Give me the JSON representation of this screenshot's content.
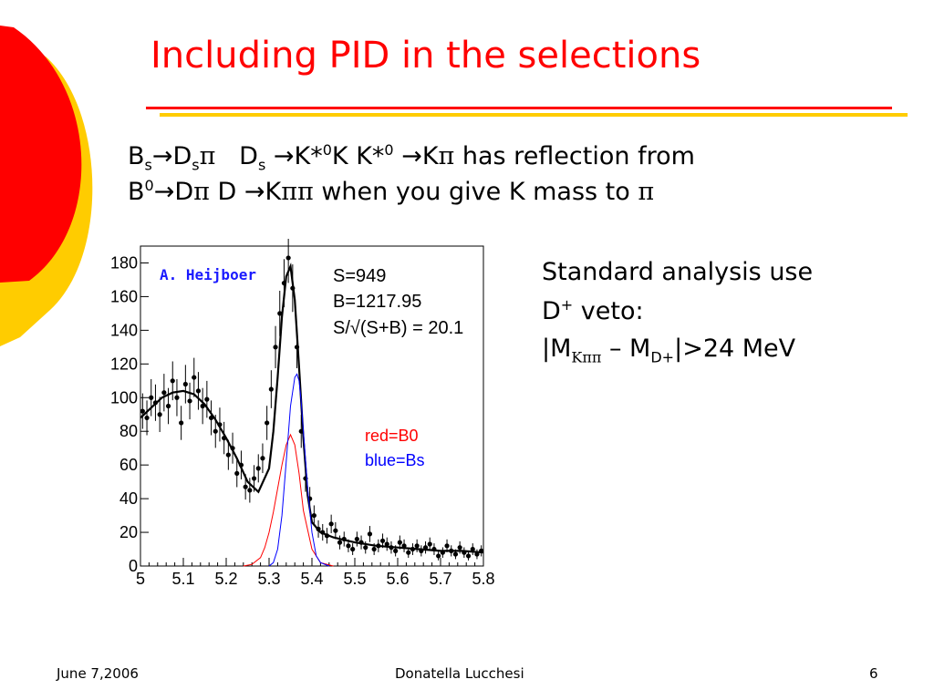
{
  "colors": {
    "accent_red": "#ff0000",
    "accent_gold": "#ffcc00"
  },
  "title": "Including PID in the selections",
  "bullets": {
    "line1": {
      "bs": "B",
      "bs_sub": "s",
      "arrow1": "→",
      "ds": "D",
      "ds_sub": "s",
      "pi1": "π",
      "ds2": "D",
      "ds2_sub": "s",
      "arrow2": "→",
      "kstar": "K*",
      "kstar_sup": "0",
      "k_kstar": "K K*",
      "kstar2_sup": "0",
      "arrow3": "→",
      "kpi_k": "K",
      "pi2": "π",
      "tail": "has reflection from"
    },
    "line2": {
      "b0": "B",
      "b0_sup": "0",
      "arrow1": "→",
      "dpi_d": "D",
      "pi1": "π",
      "d": "D",
      "arrow2": "→",
      "k": "K",
      "pipi": "ππ",
      "tail": "when you give K mass to",
      "pi_end": "π"
    }
  },
  "side_text": {
    "line1": "Standard analysis use",
    "line2_d": "D",
    "line2_sup": "+",
    "line2_tail": " veto:",
    "line3_pre": "|M",
    "line3_sub": "Kππ",
    "line3_mid": " – M",
    "line3_sub2": "D+",
    "line3_tail": "|>24 MeV"
  },
  "chart_data": {
    "type": "scatter",
    "title": "",
    "xlabel": "",
    "ylabel": "",
    "xlim": [
      5.0,
      5.8
    ],
    "ylim": [
      0,
      190
    ],
    "x_ticks": [
      "5",
      "5.1",
      "5.2",
      "5.3",
      "5.4",
      "5.5",
      "5.6",
      "5.7",
      "5.8"
    ],
    "y_ticks": [
      "0",
      "20",
      "40",
      "60",
      "80",
      "100",
      "120",
      "140",
      "160",
      "180"
    ],
    "annotations": {
      "author": "A. Heijboer",
      "s": "S=949",
      "b": "B=1217.95",
      "signif": "S/√(S+B) = 20.1",
      "red_label": "red=B0",
      "blue_label": "blue=Bs"
    },
    "series": [
      {
        "role": "data",
        "color": "#000000",
        "x": [
          5.005,
          5.015,
          5.025,
          5.035,
          5.045,
          5.055,
          5.065,
          5.075,
          5.085,
          5.095,
          5.105,
          5.115,
          5.125,
          5.135,
          5.145,
          5.155,
          5.165,
          5.175,
          5.185,
          5.195,
          5.205,
          5.215,
          5.225,
          5.235,
          5.245,
          5.255,
          5.265,
          5.275,
          5.285,
          5.295,
          5.305,
          5.315,
          5.325,
          5.335,
          5.345,
          5.355,
          5.365,
          5.375,
          5.385,
          5.395,
          5.405,
          5.415,
          5.425,
          5.435,
          5.445,
          5.455,
          5.465,
          5.475,
          5.485,
          5.495,
          5.505,
          5.515,
          5.525,
          5.535,
          5.545,
          5.555,
          5.565,
          5.575,
          5.585,
          5.595,
          5.605,
          5.615,
          5.625,
          5.635,
          5.645,
          5.655,
          5.665,
          5.675,
          5.685,
          5.695,
          5.705,
          5.715,
          5.725,
          5.735,
          5.745,
          5.755,
          5.765,
          5.775,
          5.785,
          5.795
        ],
        "y": [
          92,
          88,
          100,
          97,
          90,
          103,
          95,
          110,
          100,
          85,
          108,
          98,
          112,
          104,
          95,
          99,
          88,
          80,
          84,
          76,
          66,
          70,
          55,
          60,
          47,
          45,
          52,
          58,
          64,
          85,
          105,
          130,
          150,
          168,
          183,
          165,
          130,
          80,
          52,
          40,
          30,
          22,
          20,
          18,
          25,
          21,
          14,
          16,
          12,
          10,
          16,
          14,
          11,
          19,
          10,
          12,
          15,
          13,
          11,
          9,
          14,
          12,
          8,
          10,
          12,
          9,
          11,
          13,
          10,
          6,
          8,
          12,
          9,
          7,
          11,
          8,
          6,
          10,
          7,
          9
        ]
      },
      {
        "role": "fit",
        "color": "#000000",
        "x": [
          5.0,
          5.025,
          5.05,
          5.075,
          5.1,
          5.125,
          5.15,
          5.175,
          5.2,
          5.225,
          5.25,
          5.275,
          5.3,
          5.31,
          5.32,
          5.33,
          5.34,
          5.35,
          5.36,
          5.37,
          5.38,
          5.39,
          5.4,
          5.42,
          5.45,
          5.5,
          5.55,
          5.6,
          5.65,
          5.7,
          5.75,
          5.8
        ],
        "y": [
          88,
          94,
          100,
          103,
          104,
          102,
          96,
          87,
          76,
          64,
          50,
          44,
          58,
          80,
          112,
          148,
          172,
          178,
          158,
          118,
          76,
          42,
          26,
          20,
          17,
          14,
          12,
          11,
          10,
          9,
          9,
          8
        ]
      },
      {
        "role": "fit",
        "name": "B0",
        "color": "#ff0000",
        "x": [
          5.24,
          5.26,
          5.28,
          5.29,
          5.3,
          5.31,
          5.32,
          5.33,
          5.34,
          5.35,
          5.36,
          5.37,
          5.38,
          5.4,
          5.42,
          5.45
        ],
        "y": [
          0,
          1,
          5,
          11,
          20,
          32,
          46,
          60,
          72,
          78,
          72,
          55,
          33,
          10,
          2,
          0
        ]
      },
      {
        "role": "fit",
        "name": "Bs",
        "color": "#0000ff",
        "x": [
          5.3,
          5.31,
          5.32,
          5.33,
          5.34,
          5.35,
          5.36,
          5.365,
          5.37,
          5.375,
          5.38,
          5.39,
          5.4,
          5.41,
          5.42,
          5.44
        ],
        "y": [
          0,
          2,
          10,
          30,
          62,
          95,
          112,
          114,
          110,
          97,
          80,
          46,
          20,
          6,
          2,
          0
        ]
      }
    ]
  },
  "footer": {
    "date": "June 7,2006",
    "author": "Donatella Lucchesi",
    "page": "6"
  }
}
